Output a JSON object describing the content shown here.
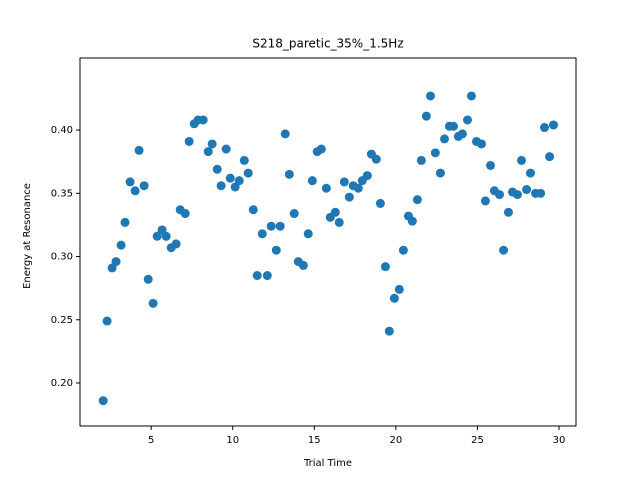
{
  "chart_data": {
    "type": "scatter",
    "title": "S218_paretic_35%_1.5Hz",
    "x_label": "Trial Time",
    "y_label": "Energy at Resonance",
    "color": "#1f77b4",
    "grid": false,
    "xlim": [
      0.64,
      31.04
    ],
    "ylim": [
      0.166,
      0.457
    ],
    "xticks": [
      5,
      10,
      15,
      20,
      25,
      30
    ],
    "yticks": [
      {
        "value": 0.2,
        "label": "0.20"
      },
      0.25,
      {
        "value": 0.3,
        "label": "0.30"
      },
      0.35,
      {
        "value": 0.4,
        "label": "0.40"
      }
    ],
    "x": [
      2.06,
      2.3,
      2.61,
      2.85,
      3.16,
      3.4,
      3.71,
      4.02,
      4.26,
      4.57,
      4.82,
      5.12,
      5.37,
      5.67,
      5.92,
      6.23,
      6.53,
      6.78,
      7.09,
      7.33,
      7.64,
      7.88,
      8.19,
      8.5,
      8.74,
      9.05,
      9.29,
      9.6,
      9.85,
      10.15,
      10.4,
      10.71,
      10.95,
      11.26,
      11.5,
      11.81,
      12.12,
      12.36,
      12.67,
      12.91,
      13.22,
      13.47,
      13.77,
      14.02,
      14.33,
      14.63,
      14.88,
      15.18,
      15.43,
      15.74,
      15.98,
      16.29,
      16.53,
      16.84,
      17.15,
      17.39,
      17.7,
      17.94,
      18.25,
      18.5,
      18.8,
      19.05,
      19.36,
      19.6,
      19.91,
      20.21,
      20.46,
      20.77,
      21.01,
      21.32,
      21.56,
      21.87,
      22.12,
      22.42,
      22.73,
      22.98,
      23.28,
      23.53,
      23.83,
      24.08,
      24.39,
      24.63,
      24.94,
      25.25,
      25.49,
      25.8,
      26.04,
      26.35,
      26.6,
      26.9,
      27.15,
      27.45,
      27.7,
      28.01,
      28.25,
      28.56,
      28.87,
      29.11,
      29.42,
      29.66
    ],
    "values": [
      0.186,
      0.249,
      0.291,
      0.296,
      0.309,
      0.327,
      0.359,
      0.352,
      0.384,
      0.356,
      0.282,
      0.263,
      0.316,
      0.321,
      0.316,
      0.307,
      0.31,
      0.337,
      0.334,
      0.391,
      0.405,
      0.408,
      0.408,
      0.383,
      0.389,
      0.369,
      0.356,
      0.385,
      0.362,
      0.355,
      0.36,
      0.376,
      0.366,
      0.337,
      0.285,
      0.318,
      0.285,
      0.324,
      0.305,
      0.324,
      0.397,
      0.365,
      0.334,
      0.296,
      0.293,
      0.318,
      0.36,
      0.383,
      0.385,
      0.354,
      0.331,
      0.335,
      0.327,
      0.359,
      0.347,
      0.356,
      0.354,
      0.36,
      0.364,
      0.381,
      0.377,
      0.342,
      0.292,
      0.241,
      0.267,
      0.274,
      0.305,
      0.332,
      0.328,
      0.345,
      0.376,
      0.411,
      0.427,
      0.382,
      0.366,
      0.393,
      0.403,
      0.403,
      0.395,
      0.397,
      0.408,
      0.427,
      0.391,
      0.389,
      0.344,
      0.372,
      0.352,
      0.349,
      0.305,
      0.335,
      0.351,
      0.349,
      0.376,
      0.353,
      0.366,
      0.35,
      0.35,
      0.402,
      0.379,
      0.404
    ]
  }
}
